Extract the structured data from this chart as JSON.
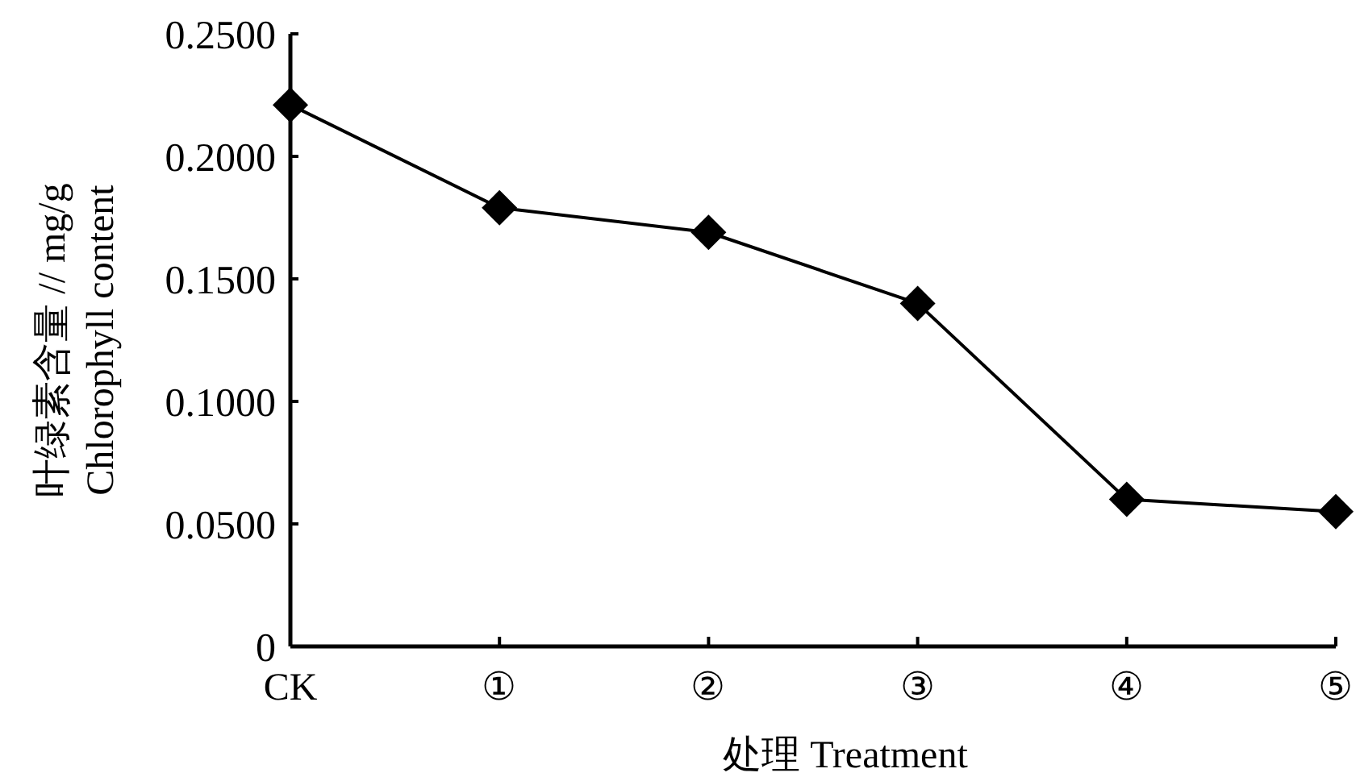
{
  "chart_data": {
    "type": "line",
    "xlabel": "处理 Treatment",
    "ylabel": "叶绿素含量 // mg/g\nChlorophyll content",
    "categories": [
      "CK",
      "①",
      "②",
      "③",
      "④",
      "⑤"
    ],
    "series": [
      {
        "color": "#000000",
        "values": [
          0.221,
          0.179,
          0.169,
          0.14,
          0.06,
          0.055
        ]
      }
    ],
    "marker": "diamond",
    "line_style": "solid",
    "ylim": [
      0,
      0.25
    ],
    "yticks": [
      0,
      {
        "value": 0.05,
        "label": "0.0500"
      },
      {
        "value": 0.1,
        "label": "0.1000"
      },
      {
        "value": 0.15,
        "label": "0.1500"
      },
      {
        "value": 0.2,
        "label": "0.2000"
      },
      {
        "value": 0.25,
        "label": "0.2500"
      }
    ],
    "grid": false
  }
}
